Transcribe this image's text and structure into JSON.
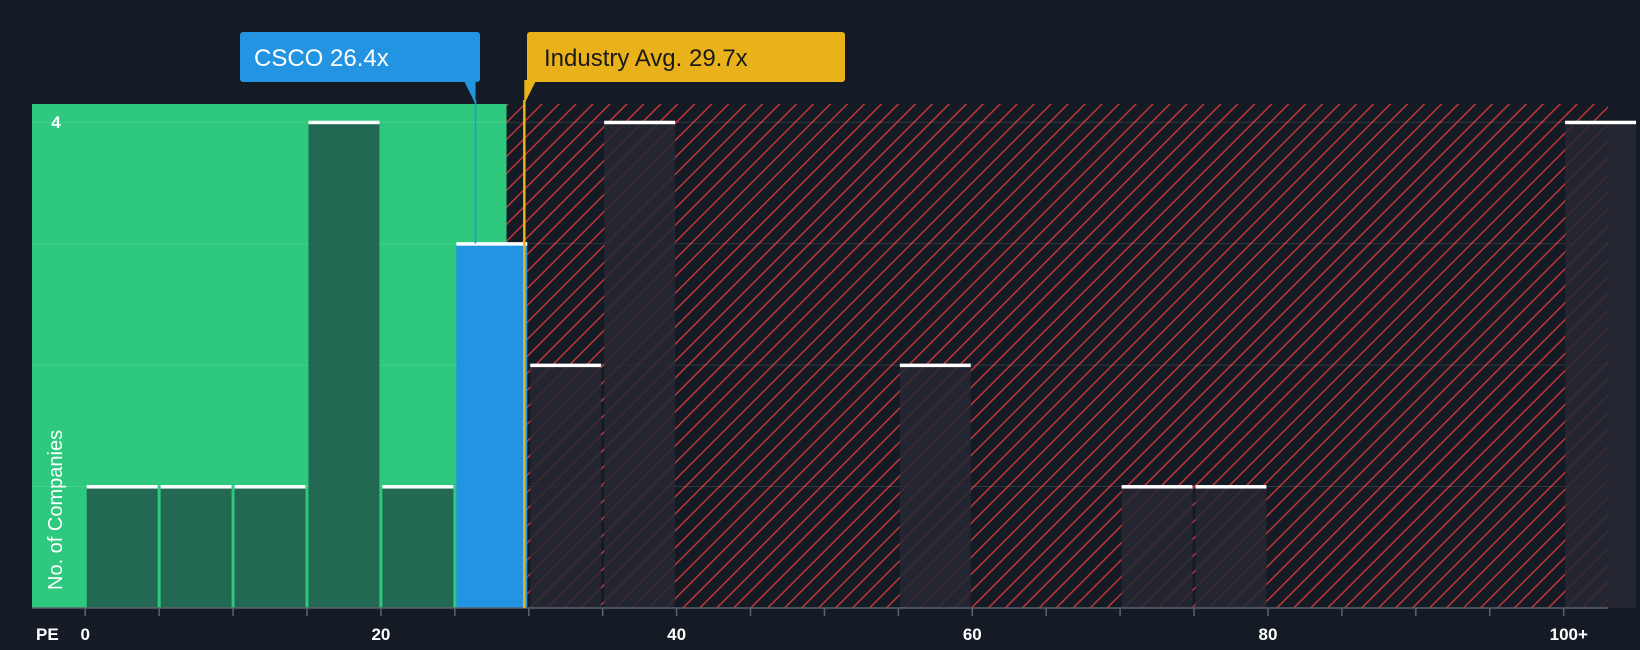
{
  "chart_data": {
    "type": "bar",
    "title": "",
    "xlabel": "PE",
    "ylabel": "No. of Companies",
    "xlim": [
      -3.6,
      103
    ],
    "ylim": [
      0,
      4.15
    ],
    "y_ticks": [
      4
    ],
    "x_ticks": [
      {
        "value": 0,
        "label": "0"
      },
      {
        "value": 20,
        "label": "20"
      },
      {
        "value": 40,
        "label": "40"
      },
      {
        "value": 60,
        "label": "60"
      },
      {
        "value": 80,
        "label": "80"
      },
      {
        "value": 100,
        "label": "100+"
      }
    ],
    "bin_width": 5,
    "bins": [
      {
        "start": 0,
        "end": 5,
        "count": 1
      },
      {
        "start": 5,
        "end": 10,
        "count": 1
      },
      {
        "start": 10,
        "end": 15,
        "count": 1
      },
      {
        "start": 15,
        "end": 20,
        "count": 4
      },
      {
        "start": 20,
        "end": 25,
        "count": 1
      },
      {
        "start": 25,
        "end": 30,
        "count": 3,
        "highlight": true
      },
      {
        "start": 30,
        "end": 35,
        "count": 2
      },
      {
        "start": 35,
        "end": 40,
        "count": 4
      },
      {
        "start": 55,
        "end": 60,
        "count": 2
      },
      {
        "start": 70,
        "end": 75,
        "count": 1
      },
      {
        "start": 75,
        "end": 80,
        "count": 1
      },
      {
        "start": 100,
        "end": 105,
        "count": 4
      }
    ],
    "company": {
      "ticker": "CSCO",
      "value": 26.4,
      "label": "CSCO 26.4x"
    },
    "industry_avg": {
      "value": 29.7,
      "label": "Industry Avg. 29.7x"
    },
    "fair_zone_end": 28.5
  },
  "colors": {
    "background": "#151b24",
    "green_zone": "#2ec97e",
    "red_hatch": "#c0353a",
    "bar_green": "#20574a",
    "bar_red": "#262832",
    "highlight": "#2394e2",
    "gold": "#eab21a",
    "cap": "#ffffff"
  }
}
